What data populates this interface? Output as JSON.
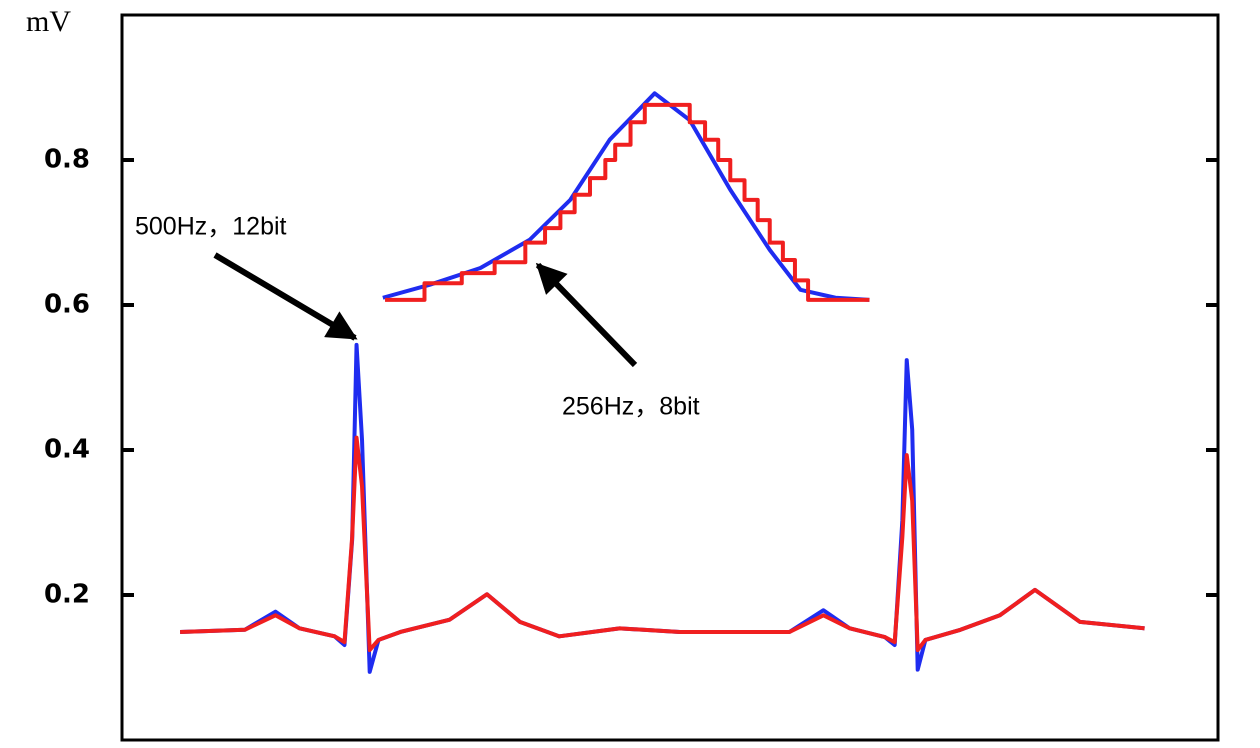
{
  "chart_data": {
    "type": "line",
    "y_label": "mV",
    "ylim": [
      0,
      1.0
    ],
    "yticks": [
      0.2,
      0.4,
      0.6,
      0.8
    ],
    "xlim": [
      0,
      100
    ],
    "series": [
      {
        "color": "#1f2cf0",
        "x": [
          5.3,
          11.2,
          14.0,
          16.2,
          19.4,
          20.3,
          21.0,
          21.4,
          21.9,
          22.6,
          23.4,
          25.4,
          29.9,
          33.3,
          36.3,
          39.9,
          45.4,
          50.9,
          60.9,
          64.0,
          66.4,
          69.6,
          70.5,
          71.2,
          71.6,
          72.1,
          72.6,
          73.3,
          76.5,
          80.1,
          83.3,
          87.4,
          93.3
        ],
        "values": [
          0.149,
          0.152,
          0.177,
          0.154,
          0.143,
          0.131,
          0.276,
          0.545,
          0.414,
          0.094,
          0.138,
          0.149,
          0.166,
          0.201,
          0.163,
          0.143,
          0.154,
          0.149,
          0.149,
          0.179,
          0.154,
          0.142,
          0.131,
          0.303,
          0.524,
          0.428,
          0.097,
          0.138,
          0.152,
          0.172,
          0.207,
          0.163,
          0.154
        ]
      },
      {
        "color": "#f01f1f",
        "x": [
          5.3,
          11.2,
          14.0,
          16.2,
          19.4,
          20.3,
          21.0,
          21.4,
          21.9,
          22.6,
          23.4,
          25.4,
          29.9,
          33.3,
          36.3,
          39.9,
          45.4,
          50.9,
          60.9,
          64.0,
          66.4,
          69.6,
          70.5,
          71.2,
          71.6,
          72.1,
          72.6,
          73.3,
          76.5,
          80.1,
          83.3,
          87.4,
          93.3
        ],
        "values": [
          0.149,
          0.152,
          0.172,
          0.154,
          0.143,
          0.135,
          0.28,
          0.417,
          0.35,
          0.124,
          0.138,
          0.149,
          0.166,
          0.201,
          0.163,
          0.143,
          0.154,
          0.149,
          0.149,
          0.172,
          0.154,
          0.142,
          0.135,
          0.28,
          0.393,
          0.33,
          0.124,
          0.138,
          0.152,
          0.172,
          0.207,
          0.163,
          0.154
        ]
      },
      {
        "color": "#1f2cf0",
        "x": [
          23.8,
          28.1,
          32.7,
          37.2,
          40.9,
          44.5,
          48.6,
          51.8,
          55.5,
          59.1,
          61.9,
          65.1,
          68.2
        ],
        "values": [
          0.61,
          0.628,
          0.651,
          0.69,
          0.745,
          0.828,
          0.892,
          0.855,
          0.759,
          0.676,
          0.621,
          0.61,
          0.607
        ]
      },
      {
        "color": "#f01f1f",
        "step": true,
        "x": [
          24.0,
          27.6,
          31.0,
          34.0,
          36.8,
          38.6,
          40.0,
          41.3,
          42.7,
          44.1,
          45.0,
          46.4,
          47.7,
          51.8,
          53.2,
          54.4,
          55.5,
          56.8,
          58.0,
          59.1,
          60.3,
          61.4,
          62.6,
          68.2
        ],
        "values": [
          0.607,
          0.63,
          0.644,
          0.659,
          0.686,
          0.706,
          0.728,
          0.752,
          0.775,
          0.8,
          0.821,
          0.852,
          0.876,
          0.852,
          0.828,
          0.8,
          0.772,
          0.745,
          0.717,
          0.686,
          0.662,
          0.634,
          0.607,
          0.607
        ]
      }
    ],
    "annotations": [
      "500Hz，12bit",
      "256Hz，8bit"
    ]
  }
}
